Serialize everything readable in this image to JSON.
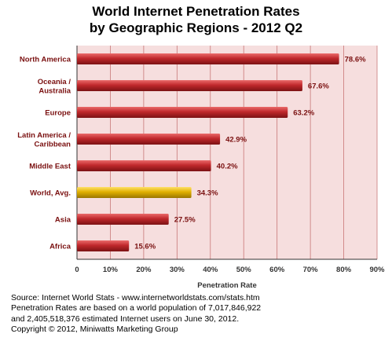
{
  "chart_data": {
    "type": "bar",
    "orientation": "horizontal",
    "title": "World Internet Penetration Rates",
    "subtitle": "by Geographic Regions - 2012 Q2",
    "xlabel": "Penetration Rate",
    "ylabel": "",
    "xlim": [
      0,
      90
    ],
    "x_ticks": [
      "0",
      "10%",
      "20%",
      "30%",
      "40%",
      "50%",
      "60%",
      "70%",
      "80%",
      "90%"
    ],
    "grid": true,
    "categories": [
      [
        "North America"
      ],
      [
        "Oceania  /",
        "Australia"
      ],
      [
        "Europe"
      ],
      [
        "Latin America /",
        "Caribbean"
      ],
      [
        "Middle East"
      ],
      [
        "World, Avg."
      ],
      [
        "Asia"
      ],
      [
        "Africa"
      ]
    ],
    "values": [
      78.6,
      67.6,
      63.2,
      42.9,
      40.2,
      34.3,
      27.5,
      15.6
    ],
    "value_labels": [
      "78.6%",
      "67.6%",
      "63.2%",
      "42.9%",
      "40.2%",
      "34.3%",
      "27.5%",
      "15.6%"
    ],
    "highlight_index": 5,
    "colors": {
      "bar": "#c0282c",
      "highlight_bar": "#e0b000",
      "plot_bg": "#f6dede",
      "grid": "#c87878",
      "category_text": "#7a1010",
      "value_text": "#7a1010"
    }
  },
  "source_lines": [
    "Source: Internet World Stats - www.internetworldstats.com/stats.htm",
    "Penetration Rates are based on a world population of 7,017,846,922",
    "and 2,405,518,376 estimated Internet users on June 30, 2012.",
    "Copyright © 2012, Miniwatts Marketing Group"
  ]
}
